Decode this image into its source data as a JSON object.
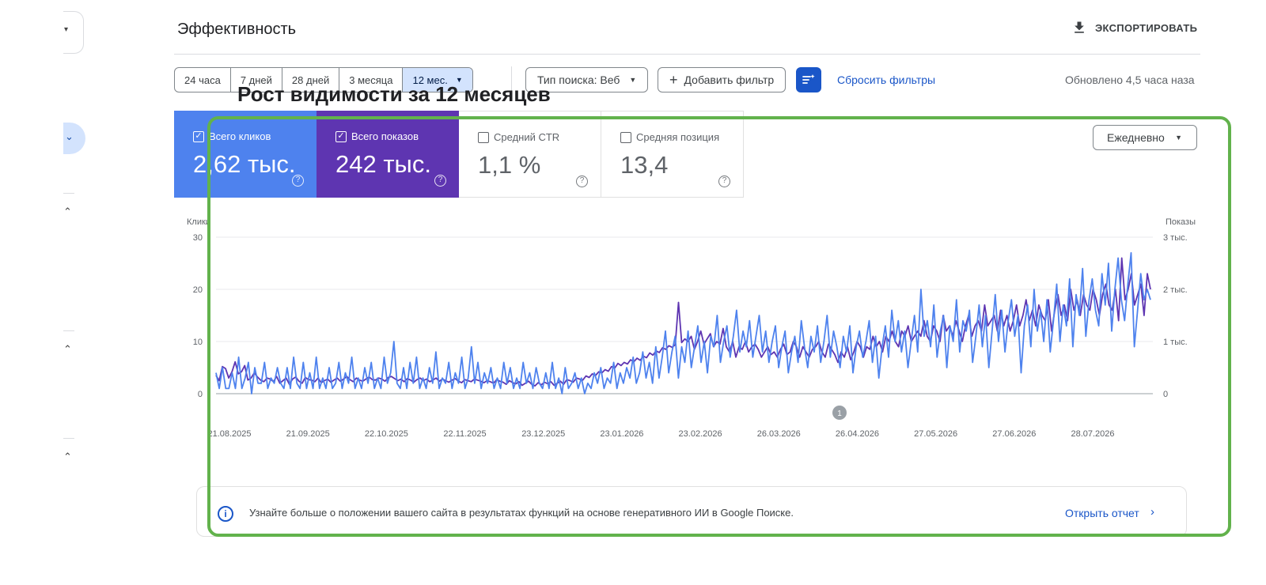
{
  "header": {
    "title": "Эффективность",
    "export_label": "ЭКСПОРТИРОВАТЬ"
  },
  "filters": {
    "ranges": [
      "24 часа",
      "7 дней",
      "28 дней",
      "3 месяца",
      "12 мес."
    ],
    "active_range": 4,
    "search_type": "Тип поиска: Веб",
    "add_filter": "Добавить фильтр",
    "reset": "Сбросить фильтры",
    "updated": "Обновлено 4,5 часа наза"
  },
  "overlay_title": "Рост видимости за 12 месяцев",
  "metrics": [
    {
      "label": "Всего кликов",
      "value": "2,62 тыс.",
      "checked": true,
      "color": "#4e82ee"
    },
    {
      "label": "Всего показов",
      "value": "242 тыс.",
      "checked": true,
      "color": "#5e35b1"
    },
    {
      "label": "Средний CTR",
      "value": "1,1 %",
      "checked": false
    },
    {
      "label": "Средняя позиция",
      "value": "13,4",
      "checked": false
    }
  ],
  "frequency": "Ежедневно",
  "chart_data": {
    "type": "line",
    "left_axis": {
      "label": "Клики",
      "ticks": [
        "30",
        "20",
        "10",
        "0"
      ],
      "range": [
        0,
        30
      ]
    },
    "right_axis": {
      "label": "Показы",
      "ticks": [
        "3 тыс.",
        "2 тыс.",
        "1 тыс.",
        "0"
      ],
      "range": [
        0,
        3000
      ]
    },
    "x_ticks": [
      "21.08.2025",
      "21.09.2025",
      "22.10.2025",
      "22.11.2025",
      "23.12.2025",
      "23.01.2026",
      "23.02.2026",
      "26.03.2026",
      "26.04.2026",
      "27.05.2026",
      "27.06.2026",
      "28.07.2026"
    ],
    "annotation": "1",
    "grid": true,
    "series": [
      {
        "axis": "left",
        "color": "#4e82ee",
        "values": [
          4,
          1,
          5,
          1,
          1,
          4,
          1,
          7,
          1,
          3,
          6,
          0,
          5,
          2,
          2,
          6,
          1,
          3,
          2,
          5,
          2,
          1,
          5,
          1,
          7,
          2,
          1,
          6,
          1,
          4,
          1,
          7,
          1,
          3,
          1,
          5,
          1,
          2,
          6,
          1,
          4,
          2,
          7,
          1,
          3,
          1,
          5,
          2,
          6,
          1,
          3,
          1,
          7,
          2,
          4,
          10,
          2,
          1,
          5,
          1,
          6,
          2,
          7,
          1,
          3,
          1,
          5,
          2,
          8,
          1,
          3,
          2,
          6,
          1,
          4,
          2,
          7,
          1,
          3,
          9,
          2,
          6,
          1,
          4,
          2,
          5,
          1,
          3,
          1,
          6,
          2,
          5,
          1,
          3,
          1,
          6,
          2,
          4,
          1,
          5,
          2,
          1,
          4,
          1,
          6,
          1,
          3,
          0,
          5,
          1,
          2,
          4,
          1,
          3,
          0,
          2,
          1,
          4,
          2,
          5,
          1,
          3,
          2,
          6,
          1,
          4,
          2,
          5,
          3,
          7,
          2,
          4,
          8,
          3,
          6,
          2,
          9,
          3,
          7,
          12,
          4,
          8,
          11,
          3,
          9,
          6,
          12,
          5,
          9,
          13,
          6,
          10,
          4,
          11,
          9,
          15,
          6,
          10,
          13,
          7,
          11,
          16,
          8,
          12,
          9,
          14,
          7,
          11,
          15,
          8,
          12,
          6,
          10,
          13,
          5,
          9,
          12,
          4,
          8,
          11,
          6,
          14,
          9,
          5,
          11,
          8,
          13,
          6,
          10,
          15,
          7,
          12,
          9,
          5,
          11,
          8,
          13,
          4,
          9,
          12,
          7,
          10,
          14,
          6,
          11,
          3,
          9,
          13,
          7,
          16,
          10,
          14,
          8,
          12,
          5,
          10,
          15,
          8,
          20,
          11,
          14,
          9,
          17,
          7,
          12,
          15,
          5,
          13,
          10,
          18,
          8,
          14,
          12,
          16,
          6,
          11,
          17,
          9,
          15,
          5,
          12,
          19,
          10,
          16,
          8,
          14,
          18,
          11,
          15,
          4,
          13,
          17,
          9,
          20,
          12,
          16,
          10,
          18,
          8,
          14,
          21,
          10,
          17,
          13,
          22,
          9,
          19,
          15,
          24,
          11,
          18,
          22,
          16,
          13,
          23,
          17,
          25,
          12,
          20,
          26,
          18,
          14,
          21,
          27,
          9,
          16,
          23,
          18,
          20,
          18
        ]
      },
      {
        "axis": "right",
        "color": "#5e35b1",
        "values": [
          350,
          250,
          520,
          480,
          300,
          420,
          610,
          380,
          420,
          540,
          260,
          300,
          400,
          320,
          260,
          230,
          300,
          280,
          230,
          330,
          200,
          250,
          300,
          180,
          280,
          320,
          240,
          200,
          310,
          270,
          260,
          230,
          300,
          210,
          250,
          280,
          220,
          260,
          300,
          240,
          280,
          330,
          270,
          230,
          300,
          260,
          240,
          280,
          320,
          270,
          260,
          300,
          280,
          240,
          310,
          330,
          290,
          250,
          280,
          230,
          290,
          260,
          220,
          270,
          300,
          250,
          280,
          230,
          260,
          300,
          240,
          280,
          250,
          220,
          260,
          290,
          240,
          210,
          270,
          250,
          230,
          280,
          260,
          240,
          210,
          250,
          230,
          200,
          270,
          240,
          220,
          180,
          250,
          210,
          190,
          230,
          160,
          200,
          240,
          180,
          150,
          210,
          170,
          220,
          190,
          230,
          160,
          200,
          240,
          180,
          270,
          250,
          220,
          300,
          280,
          260,
          340,
          310,
          380,
          350,
          420,
          400,
          460,
          430,
          520,
          490,
          580,
          540,
          600,
          570,
          650,
          610,
          680,
          640,
          720,
          690,
          780,
          740,
          820,
          790,
          880,
          850,
          920,
          890,
          940,
          1750,
          980,
          1050,
          1000,
          1100,
          850,
          1000,
          1200,
          950,
          1050,
          1150,
          900,
          1000,
          950,
          1250,
          900,
          800,
          1000,
          700,
          900,
          850,
          1000,
          800,
          900,
          950,
          850,
          700,
          800,
          900,
          750,
          800,
          700,
          850,
          950,
          750,
          800,
          1000,
          900,
          700,
          900,
          800,
          700,
          850,
          900,
          1000,
          800,
          700,
          950,
          850,
          750,
          600,
          800,
          700,
          900,
          650,
          800,
          1000,
          900,
          700,
          900,
          850,
          1100,
          900,
          1000,
          800,
          1100,
          1000,
          1200,
          1000,
          900,
          1200,
          1100,
          1300,
          1000,
          1100,
          1200,
          1100,
          1400,
          1100,
          1000,
          1300,
          1200,
          1000,
          1500,
          1200,
          1300,
          1100,
          1400,
          1200,
          1000,
          1300,
          1500,
          1100,
          1300,
          1400,
          1200,
          1700,
          1300,
          1400,
          1500,
          1200,
          1600,
          1300,
          1500,
          1200,
          1400,
          1700,
          1300,
          1500,
          1800,
          1400,
          1600,
          1300,
          1700,
          1500,
          1400,
          1800,
          1200,
          1600,
          1900,
          1500,
          1700,
          1400,
          2000,
          1600,
          1800,
          1500,
          1900,
          1700,
          1600,
          2000,
          1800,
          1500,
          1900,
          2100,
          1700,
          1600,
          2000,
          1400,
          2600,
          1800,
          2000,
          2300,
          1700,
          1900,
          2100,
          1500,
          2300,
          2000
        ]
      }
    ]
  },
  "banner": {
    "text": "Узнайте больше о положении вашего сайта в результатах функций на основе генеративного ИИ в Google Поиске.",
    "link": "Открыть отчет"
  },
  "colors": {
    "accent": "#1a56c8",
    "highlight": "#62b24c"
  }
}
